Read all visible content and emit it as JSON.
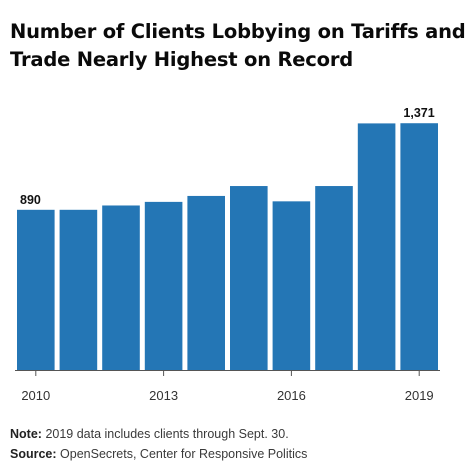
{
  "title": "Number of Clients Lobbying on Tariffs and Trade Nearly Highest on Record",
  "chart_data": {
    "type": "bar",
    "title": "Number of Clients Lobbying on Tariffs and Trade Nearly Highest on Record",
    "xlabel": "",
    "ylabel": "",
    "categories": [
      "2010",
      "2011",
      "2012",
      "2013",
      "2014",
      "2015",
      "2016",
      "2017",
      "2018",
      "2019"
    ],
    "values": [
      890,
      890,
      914,
      934,
      967,
      1022,
      937,
      1022,
      1370,
      1371
    ],
    "data_labels": [
      {
        "index": 0,
        "text": "890"
      },
      {
        "index": 9,
        "text": "1,371"
      }
    ],
    "tick_labels": [
      {
        "index": 0,
        "text": "2010"
      },
      {
        "index": 3,
        "text": "2013"
      },
      {
        "index": 6,
        "text": "2016"
      },
      {
        "index": 9,
        "text": "2019"
      }
    ],
    "ylim": [
      0,
      1500
    ],
    "grid": false,
    "legend": "none",
    "bar_color": "#2476b5",
    "axis_color": "#555555"
  },
  "note": {
    "label": "Note:",
    "text": "2019 data includes clients through Sept. 30."
  },
  "source": {
    "label": "Source:",
    "text": "OpenSecrets, Center for Responsive Politics"
  }
}
